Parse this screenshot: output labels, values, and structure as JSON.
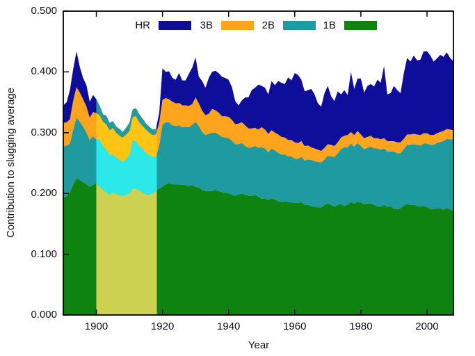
{
  "chart_data": {
    "type": "area",
    "stacked": true,
    "title": "",
    "xlabel": "Year",
    "ylabel": "Contribution to slugging average",
    "x_start": 1890,
    "x_end": 2008,
    "ylim": [
      0,
      0.5
    ],
    "grid": false,
    "x_ticks": [
      1900,
      1920,
      1940,
      1960,
      1980,
      2000
    ],
    "y_ticks": [
      0,
      0.1,
      0.2,
      0.3,
      0.4,
      0.5
    ],
    "y_tick_labels": [
      "0.000",
      "0.100",
      "0.200",
      "0.300",
      "0.400",
      "0.500"
    ],
    "legend": {
      "position": "top-inside",
      "items": [
        "HR",
        "3B",
        "2B",
        "1B"
      ]
    },
    "highlight_region": {
      "from": 1900,
      "to": 1918.3,
      "note": "era drawn with brighter palette"
    },
    "series": [
      {
        "name": "1B",
        "color": "#0f830f",
        "highlight_color": "#ccd152",
        "values": [
          0.192,
          0.196,
          0.202,
          0.215,
          0.225,
          0.222,
          0.219,
          0.215,
          0.211,
          0.214,
          0.217,
          0.211,
          0.206,
          0.202,
          0.198,
          0.202,
          0.199,
          0.197,
          0.196,
          0.198,
          0.2,
          0.208,
          0.208,
          0.205,
          0.202,
          0.198,
          0.198,
          0.2,
          0.204,
          0.208,
          0.211,
          0.215,
          0.217,
          0.215,
          0.215,
          0.215,
          0.214,
          0.214,
          0.212,
          0.214,
          0.211,
          0.21,
          0.206,
          0.204,
          0.204,
          0.204,
          0.206,
          0.204,
          0.202,
          0.201,
          0.2,
          0.198,
          0.196,
          0.198,
          0.2,
          0.198,
          0.196,
          0.196,
          0.197,
          0.195,
          0.191,
          0.192,
          0.189,
          0.192,
          0.19,
          0.187,
          0.186,
          0.187,
          0.186,
          0.185,
          0.185,
          0.184,
          0.186,
          0.181,
          0.181,
          0.179,
          0.178,
          0.177,
          0.177,
          0.181,
          0.184,
          0.181,
          0.178,
          0.181,
          0.183,
          0.179,
          0.182,
          0.186,
          0.183,
          0.187,
          0.185,
          0.182,
          0.183,
          0.184,
          0.181,
          0.179,
          0.178,
          0.181,
          0.178,
          0.179,
          0.175,
          0.174,
          0.176,
          0.18,
          0.183,
          0.181,
          0.181,
          0.18,
          0.178,
          0.18,
          0.177,
          0.175,
          0.174,
          0.176,
          0.176,
          0.173,
          0.176,
          0.174,
          0.171
        ]
      },
      {
        "name": "2B",
        "color": "#1e9aa0",
        "highlight_color": "#2ce9e9",
        "values": [
          0.086,
          0.083,
          0.08,
          0.09,
          0.1,
          0.096,
          0.091,
          0.085,
          0.077,
          0.08,
          0.072,
          0.078,
          0.072,
          0.07,
          0.066,
          0.062,
          0.06,
          0.058,
          0.056,
          0.059,
          0.063,
          0.08,
          0.078,
          0.073,
          0.071,
          0.069,
          0.065,
          0.06,
          0.056,
          0.07,
          0.103,
          0.102,
          0.1,
          0.097,
          0.096,
          0.097,
          0.095,
          0.095,
          0.097,
          0.099,
          0.107,
          0.101,
          0.095,
          0.092,
          0.094,
          0.096,
          0.094,
          0.093,
          0.091,
          0.091,
          0.091,
          0.089,
          0.085,
          0.083,
          0.083,
          0.08,
          0.079,
          0.08,
          0.081,
          0.08,
          0.085,
          0.082,
          0.079,
          0.082,
          0.081,
          0.08,
          0.078,
          0.077,
          0.075,
          0.076,
          0.072,
          0.073,
          0.074,
          0.073,
          0.075,
          0.076,
          0.075,
          0.075,
          0.074,
          0.075,
          0.078,
          0.08,
          0.082,
          0.085,
          0.09,
          0.097,
          0.094,
          0.096,
          0.094,
          0.096,
          0.093,
          0.091,
          0.092,
          0.093,
          0.093,
          0.095,
          0.094,
          0.093,
          0.091,
          0.09,
          0.094,
          0.092,
          0.09,
          0.093,
          0.097,
          0.099,
          0.1,
          0.1,
          0.101,
          0.102,
          0.105,
          0.105,
          0.106,
          0.107,
          0.109,
          0.113,
          0.114,
          0.115,
          0.118
        ]
      },
      {
        "name": "3B",
        "color": "#ffa41c",
        "highlight_color": "#ffc414",
        "values": [
          0.038,
          0.038,
          0.04,
          0.048,
          0.05,
          0.048,
          0.045,
          0.043,
          0.037,
          0.04,
          0.043,
          0.04,
          0.04,
          0.042,
          0.04,
          0.044,
          0.041,
          0.04,
          0.04,
          0.04,
          0.04,
          0.038,
          0.041,
          0.039,
          0.038,
          0.038,
          0.037,
          0.036,
          0.037,
          0.038,
          0.04,
          0.04,
          0.038,
          0.039,
          0.037,
          0.037,
          0.036,
          0.036,
          0.035,
          0.034,
          0.04,
          0.037,
          0.035,
          0.033,
          0.033,
          0.039,
          0.037,
          0.036,
          0.034,
          0.035,
          0.035,
          0.034,
          0.033,
          0.034,
          0.034,
          0.034,
          0.032,
          0.031,
          0.03,
          0.03,
          0.033,
          0.031,
          0.03,
          0.03,
          0.029,
          0.03,
          0.029,
          0.028,
          0.027,
          0.027,
          0.027,
          0.026,
          0.026,
          0.024,
          0.023,
          0.021,
          0.021,
          0.02,
          0.019,
          0.019,
          0.019,
          0.019,
          0.018,
          0.018,
          0.019,
          0.019,
          0.02,
          0.019,
          0.019,
          0.02,
          0.019,
          0.018,
          0.018,
          0.018,
          0.017,
          0.017,
          0.017,
          0.017,
          0.017,
          0.017,
          0.017,
          0.018,
          0.018,
          0.017,
          0.017,
          0.017,
          0.017,
          0.017,
          0.017,
          0.017,
          0.017,
          0.016,
          0.016,
          0.016,
          0.016,
          0.017,
          0.016,
          0.016,
          0.015
        ]
      },
      {
        "name": "HR",
        "color": "#0e0e9a",
        "highlight_color": "#25999b",
        "values": [
          0.029,
          0.033,
          0.048,
          0.052,
          0.059,
          0.042,
          0.035,
          0.035,
          0.026,
          0.028,
          0.023,
          0.015,
          0.012,
          0.014,
          0.012,
          0.011,
          0.01,
          0.011,
          0.009,
          0.011,
          0.013,
          0.012,
          0.013,
          0.013,
          0.012,
          0.01,
          0.01,
          0.009,
          0.009,
          0.016,
          0.052,
          0.043,
          0.046,
          0.039,
          0.039,
          0.049,
          0.041,
          0.041,
          0.053,
          0.06,
          0.066,
          0.044,
          0.049,
          0.045,
          0.059,
          0.061,
          0.065,
          0.065,
          0.065,
          0.063,
          0.061,
          0.054,
          0.038,
          0.03,
          0.036,
          0.046,
          0.051,
          0.063,
          0.066,
          0.074,
          0.068,
          0.069,
          0.065,
          0.081,
          0.078,
          0.088,
          0.089,
          0.088,
          0.103,
          0.098,
          0.114,
          0.112,
          0.101,
          0.09,
          0.091,
          0.096,
          0.089,
          0.076,
          0.073,
          0.09,
          0.096,
          0.08,
          0.074,
          0.084,
          0.071,
          0.075,
          0.066,
          0.099,
          0.076,
          0.086,
          0.092,
          0.075,
          0.084,
          0.085,
          0.085,
          0.096,
          0.093,
          0.119,
          0.077,
          0.079,
          0.091,
          0.086,
          0.081,
          0.108,
          0.126,
          0.12,
          0.129,
          0.122,
          0.124,
          0.135,
          0.135,
          0.131,
          0.121,
          0.123,
          0.127,
          0.122,
          0.126,
          0.118,
          0.113
        ]
      }
    ],
    "axis_color": "#000000"
  }
}
